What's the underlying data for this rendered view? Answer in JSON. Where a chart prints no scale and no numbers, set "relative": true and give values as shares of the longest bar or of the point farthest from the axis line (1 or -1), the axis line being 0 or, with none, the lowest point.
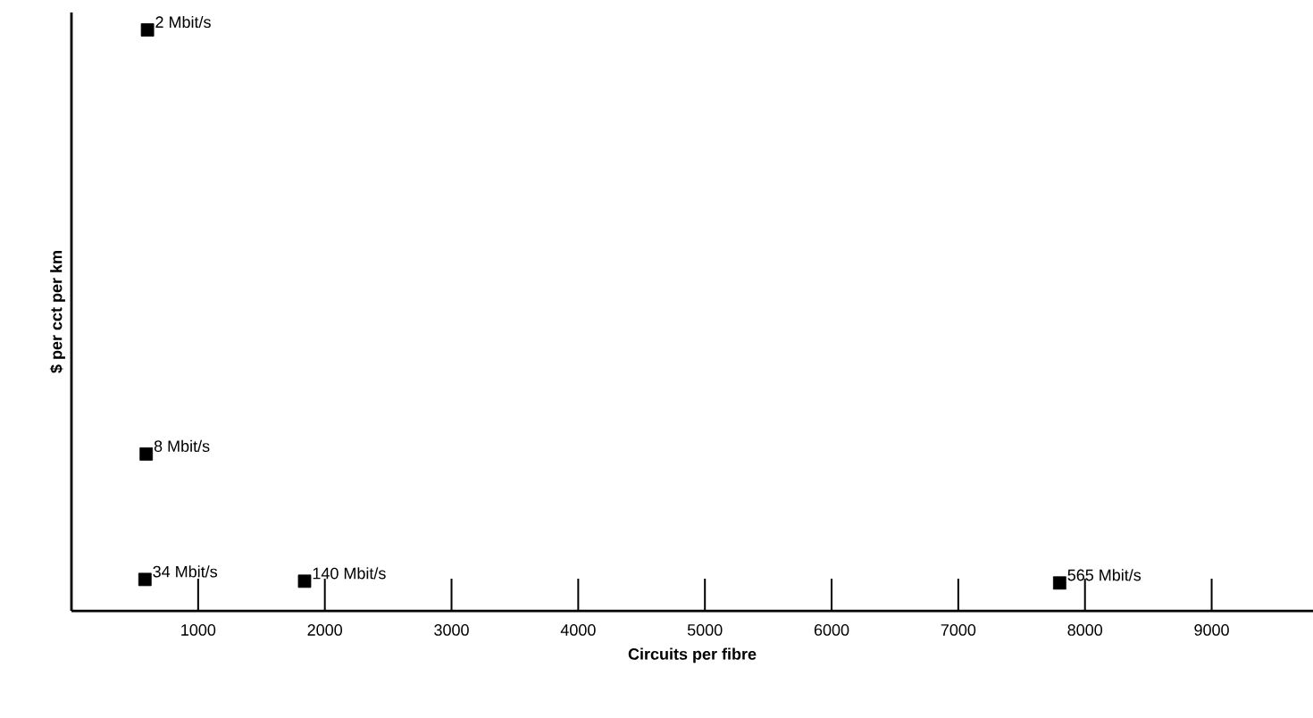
{
  "chart_data": {
    "type": "scatter",
    "xlabel": "Circuits per fibre",
    "ylabel": "$ per cct per km",
    "relative": true,
    "marker": "square",
    "x": [
      600,
      590,
      580,
      1840,
      7800
    ],
    "series": [
      {
        "color": "#000000",
        "values": [
          1,
          0.27,
          0.054,
          0.051,
          0.048
        ]
      }
    ],
    "xlim": [
      0,
      9800
    ],
    "xticks": [
      1000,
      2000,
      3000,
      4000,
      5000,
      6000,
      7000,
      8000,
      9000
    ],
    "annotations": [
      {
        "text": "2 Mbit/s",
        "x": 600,
        "y": 1
      },
      {
        "text": "8 Mbit/s",
        "x": 590,
        "y": 0.27
      },
      {
        "text": "34 Mbit/s",
        "x": 580,
        "y": 0.054
      },
      {
        "text": "140 Mbit/s",
        "x": 1840,
        "y": 0.051
      },
      {
        "text": "565 Mbit/s",
        "x": 7800,
        "y": 0.048
      }
    ]
  }
}
